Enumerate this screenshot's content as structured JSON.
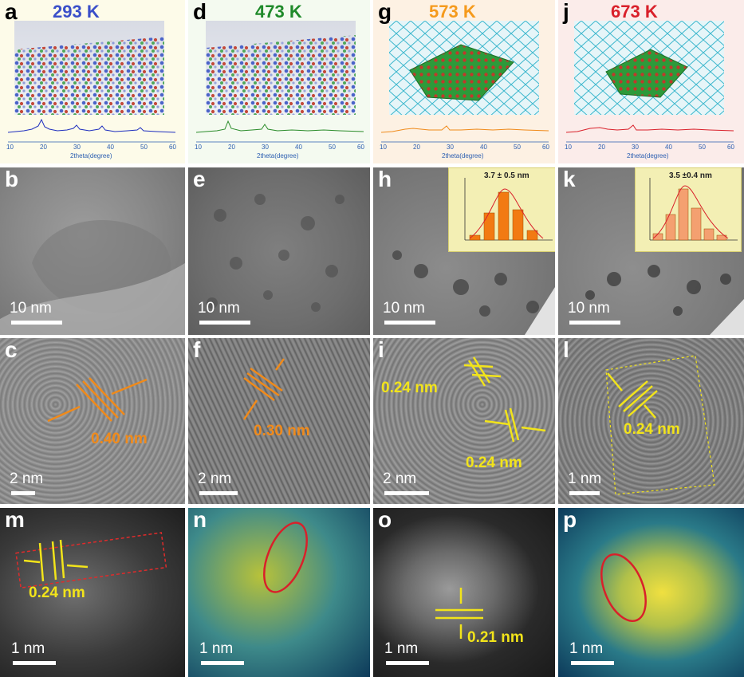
{
  "row1": [
    {
      "label": "a",
      "temperature": "293 K",
      "temp_color": "#3a4fc9",
      "bg": "#fdfbe9",
      "xrd_color": "#1f2fbf",
      "xlabel": "2theta(degree)",
      "ticks": [
        "10",
        "20",
        "30",
        "40",
        "50",
        "60"
      ]
    },
    {
      "label": "d",
      "temperature": "473 K",
      "temp_color": "#1f8a2a",
      "bg": "#f4faf0",
      "xrd_color": "#2b8c2b",
      "xlabel": "2theta(degree)",
      "ticks": [
        "10",
        "20",
        "30",
        "40",
        "50",
        "60"
      ]
    },
    {
      "label": "g",
      "temperature": "573 K",
      "temp_color": "#f59a1c",
      "bg": "#fdf1e3",
      "xrd_color": "#f08a1a",
      "xlabel": "2theta(degree)",
      "ticks": [
        "10",
        "20",
        "30",
        "40",
        "50",
        "60"
      ]
    },
    {
      "label": "j",
      "temperature": "673 K",
      "temp_color": "#d9202a",
      "bg": "#fbecea",
      "xrd_color": "#d9202a",
      "xlabel": "2theta(degree)",
      "ticks": [
        "10",
        "20",
        "30",
        "40",
        "50",
        "60"
      ]
    }
  ],
  "row2": [
    {
      "label": "b",
      "scale": "10 nm"
    },
    {
      "label": "e",
      "scale": "10 nm"
    },
    {
      "label": "h",
      "scale": "10 nm",
      "inset_value": "3.7  ± 0.5   nm"
    },
    {
      "label": "k",
      "scale": "10 nm",
      "inset_value": "3.5  ±0.4    nm"
    }
  ],
  "row3": [
    {
      "label": "c",
      "scale": "2 nm",
      "d1": "0.40 nm"
    },
    {
      "label": "f",
      "scale": "2 nm",
      "d1": "0.30 nm"
    },
    {
      "label": "i",
      "scale": "2 nm",
      "d1": "0.24 nm",
      "d2": "0.24 nm"
    },
    {
      "label": "l",
      "scale": "1 nm",
      "d1": "0.24 nm"
    }
  ],
  "row4": [
    {
      "label": "m",
      "scale": "1 nm",
      "d1": "0.24 nm"
    },
    {
      "label": "n",
      "scale": "1 nm"
    },
    {
      "label": "o",
      "scale": "1 nm",
      "d1": "0.21 nm"
    },
    {
      "label": "p",
      "scale": "1 nm"
    }
  ]
}
